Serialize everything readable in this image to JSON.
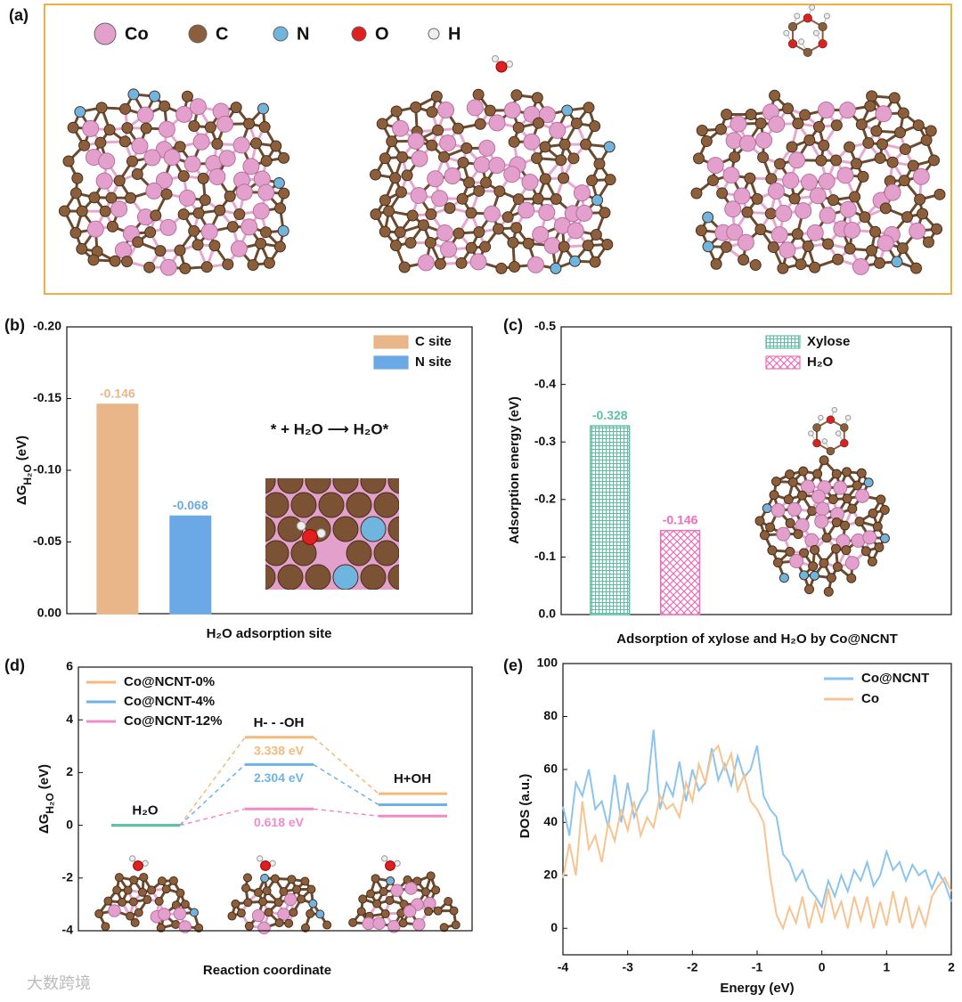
{
  "figure_a": {
    "label": "(a)",
    "legend": [
      "Co",
      "C",
      "N",
      "O",
      "H"
    ]
  },
  "watermark": "大数跨境",
  "chart_data": [
    {
      "label": "(b)",
      "type": "bar",
      "ylabel": [
        "ΔG",
        "H₂O",
        "(eV)"
      ],
      "xlabel": "H₂O adsorption site",
      "categories": [
        null
      ],
      "series": [
        {
          "name": "C site",
          "color": "#e9b68a",
          "values": [
            -0.146
          ]
        },
        {
          "name": "N site",
          "color": "#6aa8e6",
          "values": [
            -0.068
          ]
        }
      ],
      "ylim": [
        0,
        -0.2
      ],
      "yticks": [
        {
          "value": 0,
          "label": "0.00"
        },
        -0.05,
        {
          "value": -0.1,
          "label": "-0.10"
        },
        -0.15,
        {
          "value": -0.2,
          "label": "-0.20"
        }
      ],
      "legend": "upper right",
      "annotation": "* + H₂O ⟶ H₂O*"
    },
    {
      "label": "(c)",
      "type": "bar",
      "ylabel": "Adsorption energy (eV)",
      "xlabel": "Adsorption of  xylose and H₂O by Co@NCNT",
      "categories": [
        null
      ],
      "series": [
        {
          "name": "Xylose",
          "color": "#5cc0a4",
          "hatch": "grid",
          "values": [
            -0.328
          ]
        },
        {
          "name": "H₂O",
          "color": "#ee6fb8",
          "hatch": "cross",
          "values": [
            -0.146
          ]
        }
      ],
      "ylim": [
        0,
        -0.5
      ],
      "yticks": [
        {
          "value": 0,
          "label": "0.0"
        },
        -0.1,
        -0.2,
        -0.3,
        -0.4,
        -0.5
      ],
      "legend": "upper right"
    },
    {
      "label": "(d)",
      "type": "profile",
      "ylabel": [
        "ΔG",
        "H₂O",
        "(eV)"
      ],
      "xlabel": "Reaction coordinate",
      "categories": [
        "H₂O",
        "H- - -OH",
        "H+OH"
      ],
      "start_color": "#5fbfa8",
      "series": [
        {
          "name": "Co@NCNT-0%",
          "color": "#f5b97a",
          "values": [
            0,
            3.338,
            1.2
          ],
          "value_labels": [
            null,
            "3.338 eV",
            null
          ]
        },
        {
          "name": "Co@NCNT-4%",
          "color": "#6db3e8",
          "values": [
            0,
            2.304,
            0.78
          ],
          "value_labels": [
            null,
            "2.304 eV",
            null
          ]
        },
        {
          "name": "Co@NCNT-12%",
          "color": "#f08bc8",
          "values": [
            0,
            0.618,
            0.35
          ],
          "value_labels": [
            null,
            "0.618 eV",
            null
          ]
        }
      ],
      "ylim": [
        -4,
        6
      ],
      "yticks": [
        -4,
        -2,
        0,
        2,
        4,
        6
      ],
      "legend": "upper left"
    },
    {
      "label": "(e)",
      "type": "line",
      "ylabel": "DOS (a.u.)",
      "xlabel": "Energy (eV)",
      "x": [
        -4,
        -3.9,
        -3.8,
        -3.7,
        -3.6,
        -3.5,
        -3.4,
        -3.3,
        -3.2,
        -3.1,
        -3,
        -2.9,
        -2.8,
        -2.7,
        -2.6,
        -2.5,
        -2.4,
        -2.3,
        -2.2,
        -2.1,
        -2,
        -1.9,
        -1.8,
        -1.7,
        -1.6,
        -1.5,
        -1.4,
        -1.3,
        -1.2,
        -1.1,
        -1,
        -0.9,
        -0.8,
        -0.7,
        -0.6,
        -0.5,
        -0.4,
        -0.3,
        -0.2,
        -0.1,
        0,
        0.1,
        0.2,
        0.3,
        0.4,
        0.5,
        0.6,
        0.7,
        0.8,
        0.9,
        1,
        1.1,
        1.2,
        1.3,
        1.4,
        1.5,
        1.6,
        1.7,
        1.8,
        1.9,
        2
      ],
      "series": [
        {
          "name": "Co@NCNT",
          "color": "#8cc4ee",
          "values": [
            46,
            35,
            55,
            50,
            60,
            45,
            48,
            38,
            58,
            40,
            55,
            42,
            48,
            52,
            75,
            45,
            55,
            50,
            63,
            48,
            60,
            52,
            55,
            68,
            56,
            62,
            54,
            65,
            57,
            60,
            69,
            50,
            45,
            42,
            28,
            25,
            18,
            22,
            15,
            12,
            8,
            18,
            12,
            20,
            14,
            22,
            18,
            25,
            16,
            20,
            29,
            22,
            25,
            18,
            24,
            20,
            22,
            15,
            21,
            17,
            10
          ]
        },
        {
          "name": "Co",
          "color": "#f7c491",
          "values": [
            19,
            32,
            20,
            48,
            30,
            35,
            25,
            40,
            33,
            45,
            37,
            48,
            35,
            42,
            38,
            50,
            45,
            47,
            42,
            55,
            48,
            62,
            55,
            66,
            69,
            60,
            66,
            52,
            58,
            48,
            45,
            40,
            20,
            5,
            0,
            8,
            2,
            12,
            0,
            10,
            2,
            15,
            4,
            10,
            0,
            12,
            3,
            12,
            0,
            10,
            1,
            14,
            2,
            12,
            0,
            8,
            1,
            12,
            16,
            19,
            14
          ]
        }
      ],
      "xlim": [
        -4,
        2
      ],
      "xticks": [
        -4,
        -3,
        -2,
        -1,
        0,
        1,
        2
      ],
      "ylim": [
        -10,
        100
      ],
      "yticks": [
        0,
        20,
        40,
        60,
        80,
        100
      ],
      "legend": "upper right"
    }
  ]
}
